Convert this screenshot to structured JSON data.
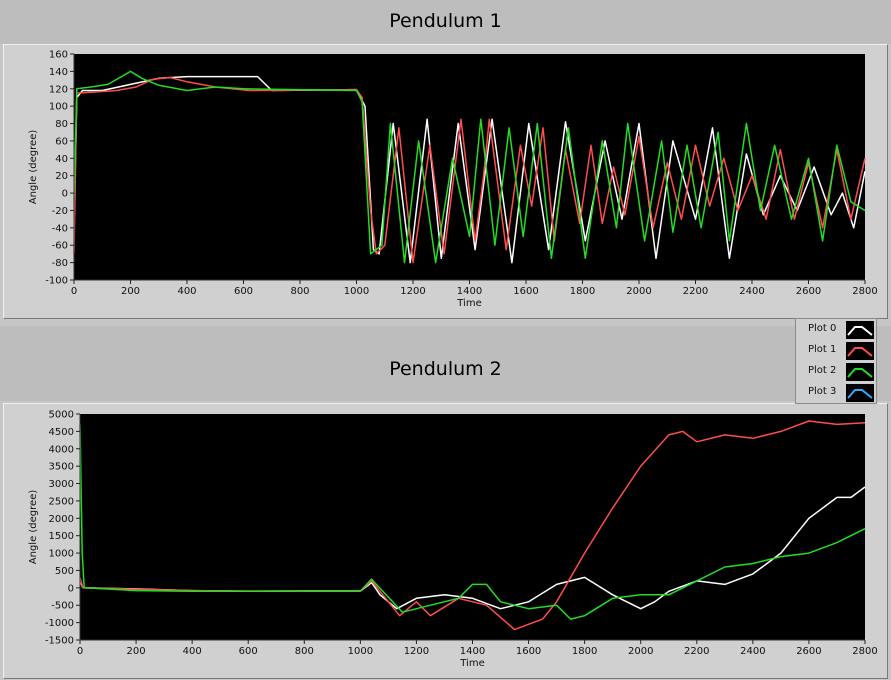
{
  "legend": {
    "items": [
      {
        "label": "Plot 0",
        "color": "#ffffff"
      },
      {
        "label": "Plot 1",
        "color": "#ff4d4d"
      },
      {
        "label": "Plot 2",
        "color": "#22dd22"
      },
      {
        "label": "Plot 3",
        "color": "#33aaff"
      }
    ]
  },
  "chart_data": [
    {
      "type": "line",
      "title": "Pendulum 1",
      "xlabel": "Time",
      "ylabel": "Angle (degree)",
      "xlim": [
        0,
        2800
      ],
      "ylim": [
        -100,
        160
      ],
      "xticks": [
        0,
        200,
        400,
        600,
        800,
        1000,
        1200,
        1400,
        1600,
        1800,
        2000,
        2200,
        2400,
        2600,
        2800
      ],
      "yticks": [
        -100,
        -80,
        -60,
        -40,
        -20,
        0,
        20,
        40,
        60,
        80,
        100,
        120,
        140,
        160
      ],
      "grid": false,
      "series": [
        {
          "name": "Plot 0",
          "color": "#ffffff",
          "points": [
            [
              0,
              -40
            ],
            [
              10,
              110
            ],
            [
              30,
              118
            ],
            [
              100,
              118
            ],
            [
              200,
              125
            ],
            [
              300,
              132
            ],
            [
              400,
              134
            ],
            [
              500,
              134
            ],
            [
              600,
              134
            ],
            [
              650,
              134
            ],
            [
              700,
              118
            ],
            [
              1000,
              119
            ],
            [
              1030,
              100
            ],
            [
              1060,
              -65
            ],
            [
              1080,
              -70
            ],
            [
              1130,
              80
            ],
            [
              1190,
              -80
            ],
            [
              1250,
              85
            ],
            [
              1300,
              -75
            ],
            [
              1360,
              80
            ],
            [
              1420,
              -65
            ],
            [
              1480,
              85
            ],
            [
              1550,
              -80
            ],
            [
              1610,
              80
            ],
            [
              1680,
              -65
            ],
            [
              1740,
              82
            ],
            [
              1810,
              -55
            ],
            [
              1880,
              60
            ],
            [
              1940,
              -30
            ],
            [
              2000,
              80
            ],
            [
              2060,
              -75
            ],
            [
              2120,
              60
            ],
            [
              2200,
              -30
            ],
            [
              2260,
              75
            ],
            [
              2320,
              -75
            ],
            [
              2380,
              45
            ],
            [
              2440,
              -25
            ],
            [
              2500,
              20
            ],
            [
              2560,
              -20
            ],
            [
              2620,
              30
            ],
            [
              2680,
              -25
            ],
            [
              2720,
              0
            ],
            [
              2760,
              -40
            ],
            [
              2800,
              25
            ]
          ]
        },
        {
          "name": "Plot 1",
          "color": "#ff4d4d",
          "points": [
            [
              0,
              -70
            ],
            [
              10,
              115
            ],
            [
              60,
              116
            ],
            [
              150,
              118
            ],
            [
              220,
              122
            ],
            [
              280,
              131
            ],
            [
              340,
              133
            ],
            [
              400,
              128
            ],
            [
              500,
              122
            ],
            [
              620,
              118
            ],
            [
              1000,
              119
            ],
            [
              1020,
              110
            ],
            [
              1050,
              -20
            ],
            [
              1070,
              -70
            ],
            [
              1100,
              -60
            ],
            [
              1150,
              75
            ],
            [
              1200,
              -80
            ],
            [
              1260,
              55
            ],
            [
              1310,
              -70
            ],
            [
              1370,
              85
            ],
            [
              1420,
              -55
            ],
            [
              1450,
              20
            ],
            [
              1470,
              85
            ],
            [
              1530,
              -65
            ],
            [
              1580,
              55
            ],
            [
              1620,
              -15
            ],
            [
              1660,
              75
            ],
            [
              1700,
              -55
            ],
            [
              1740,
              50
            ],
            [
              1790,
              -35
            ],
            [
              1830,
              55
            ],
            [
              1870,
              -35
            ],
            [
              1910,
              30
            ],
            [
              1950,
              -25
            ],
            [
              2000,
              65
            ],
            [
              2050,
              -40
            ],
            [
              2100,
              35
            ],
            [
              2150,
              -30
            ],
            [
              2200,
              55
            ],
            [
              2250,
              -15
            ],
            [
              2300,
              40
            ],
            [
              2350,
              -20
            ],
            [
              2400,
              20
            ],
            [
              2450,
              -30
            ],
            [
              2500,
              50
            ],
            [
              2550,
              -30
            ],
            [
              2600,
              35
            ],
            [
              2650,
              -40
            ],
            [
              2700,
              50
            ],
            [
              2750,
              -30
            ],
            [
              2800,
              40
            ]
          ]
        },
        {
          "name": "Plot 2",
          "color": "#22dd22",
          "points": [
            [
              0,
              -10
            ],
            [
              10,
              120
            ],
            [
              60,
              122
            ],
            [
              120,
              125
            ],
            [
              200,
              140
            ],
            [
              240,
              132
            ],
            [
              300,
              124
            ],
            [
              400,
              118
            ],
            [
              500,
              122
            ],
            [
              600,
              120
            ],
            [
              1000,
              118
            ],
            [
              1020,
              105
            ],
            [
              1050,
              -70
            ],
            [
              1090,
              -60
            ],
            [
              1120,
              80
            ],
            [
              1170,
              -80
            ],
            [
              1220,
              60
            ],
            [
              1280,
              -80
            ],
            [
              1340,
              40
            ],
            [
              1400,
              -50
            ],
            [
              1440,
              85
            ],
            [
              1490,
              -60
            ],
            [
              1540,
              75
            ],
            [
              1590,
              -50
            ],
            [
              1640,
              80
            ],
            [
              1690,
              -75
            ],
            [
              1750,
              75
            ],
            [
              1810,
              -75
            ],
            [
              1870,
              60
            ],
            [
              1920,
              -40
            ],
            [
              1960,
              80
            ],
            [
              2020,
              -55
            ],
            [
              2080,
              60
            ],
            [
              2120,
              -45
            ],
            [
              2170,
              55
            ],
            [
              2220,
              -40
            ],
            [
              2280,
              70
            ],
            [
              2320,
              -55
            ],
            [
              2380,
              80
            ],
            [
              2430,
              -20
            ],
            [
              2480,
              55
            ],
            [
              2540,
              -30
            ],
            [
              2600,
              40
            ],
            [
              2650,
              -55
            ],
            [
              2700,
              55
            ],
            [
              2750,
              -10
            ],
            [
              2800,
              -20
            ]
          ]
        },
        {
          "name": "Plot 3",
          "color": "#33aaff",
          "points": []
        }
      ]
    },
    {
      "type": "line",
      "title": "Pendulum 2",
      "xlabel": "Time",
      "ylabel": "Angle (degree)",
      "xlim": [
        0,
        2800
      ],
      "ylim": [
        -1500,
        5000
      ],
      "xticks": [
        0,
        200,
        400,
        600,
        800,
        1000,
        1200,
        1400,
        1600,
        1800,
        2000,
        2200,
        2400,
        2600,
        2800
      ],
      "yticks": [
        -1500,
        -1000,
        -500,
        0,
        500,
        1000,
        1500,
        2000,
        2500,
        3000,
        3500,
        4000,
        4500,
        5000
      ],
      "grid": false,
      "series": [
        {
          "name": "Plot 0",
          "color": "#ffffff",
          "points": [
            [
              0,
              200
            ],
            [
              10,
              0
            ],
            [
              200,
              -30
            ],
            [
              400,
              -80
            ],
            [
              600,
              -100
            ],
            [
              800,
              -90
            ],
            [
              1000,
              -90
            ],
            [
              1040,
              150
            ],
            [
              1070,
              -200
            ],
            [
              1130,
              -600
            ],
            [
              1200,
              -300
            ],
            [
              1300,
              -200
            ],
            [
              1400,
              -300
            ],
            [
              1500,
              -600
            ],
            [
              1600,
              -400
            ],
            [
              1700,
              100
            ],
            [
              1800,
              300
            ],
            [
              1900,
              -200
            ],
            [
              2000,
              -600
            ],
            [
              2050,
              -400
            ],
            [
              2100,
              -100
            ],
            [
              2200,
              200
            ],
            [
              2300,
              100
            ],
            [
              2400,
              400
            ],
            [
              2500,
              1000
            ],
            [
              2600,
              2000
            ],
            [
              2700,
              2600
            ],
            [
              2750,
              2600
            ],
            [
              2800,
              2900
            ]
          ]
        },
        {
          "name": "Plot 1",
          "color": "#ff4d4d",
          "points": [
            [
              0,
              300
            ],
            [
              10,
              0
            ],
            [
              200,
              -40
            ],
            [
              400,
              -80
            ],
            [
              600,
              -90
            ],
            [
              800,
              -90
            ],
            [
              1000,
              -90
            ],
            [
              1040,
              200
            ],
            [
              1070,
              -100
            ],
            [
              1140,
              -800
            ],
            [
              1200,
              -400
            ],
            [
              1250,
              -800
            ],
            [
              1350,
              -300
            ],
            [
              1450,
              -500
            ],
            [
              1550,
              -1200
            ],
            [
              1650,
              -900
            ],
            [
              1700,
              -400
            ],
            [
              1800,
              1000
            ],
            [
              1900,
              2300
            ],
            [
              2000,
              3500
            ],
            [
              2100,
              4400
            ],
            [
              2150,
              4500
            ],
            [
              2200,
              4200
            ],
            [
              2300,
              4400
            ],
            [
              2400,
              4300
            ],
            [
              2500,
              4500
            ],
            [
              2600,
              4800
            ],
            [
              2700,
              4700
            ],
            [
              2800,
              4750
            ]
          ]
        },
        {
          "name": "Plot 2",
          "color": "#22dd22",
          "points": [
            [
              0,
              4700
            ],
            [
              8,
              1000
            ],
            [
              15,
              0
            ],
            [
              200,
              -80
            ],
            [
              400,
              -100
            ],
            [
              600,
              -100
            ],
            [
              800,
              -90
            ],
            [
              1000,
              -90
            ],
            [
              1040,
              250
            ],
            [
              1080,
              -100
            ],
            [
              1150,
              -700
            ],
            [
              1250,
              -500
            ],
            [
              1350,
              -300
            ],
            [
              1400,
              100
            ],
            [
              1450,
              100
            ],
            [
              1500,
              -400
            ],
            [
              1600,
              -600
            ],
            [
              1700,
              -500
            ],
            [
              1750,
              -900
            ],
            [
              1800,
              -800
            ],
            [
              1900,
              -300
            ],
            [
              2000,
              -200
            ],
            [
              2100,
              -200
            ],
            [
              2200,
              200
            ],
            [
              2300,
              600
            ],
            [
              2400,
              700
            ],
            [
              2500,
              900
            ],
            [
              2600,
              1000
            ],
            [
              2700,
              1300
            ],
            [
              2800,
              1700
            ]
          ]
        },
        {
          "name": "Plot 3",
          "color": "#33aaff",
          "points": []
        }
      ]
    }
  ]
}
